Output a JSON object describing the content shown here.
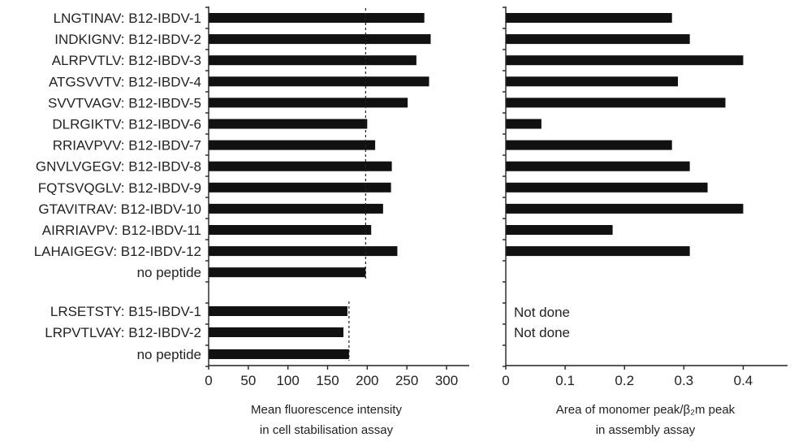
{
  "chart_data": [
    {
      "type": "bar",
      "orientation": "horizontal",
      "categories": [
        "LNGTINAV: B12-IBDV-1",
        "INDKIGNV: B12-IBDV-2",
        "ALRPVTLV: B12-IBDV-3",
        "ATGSVVTV: B12-IBDV-4",
        "SVVTVAGV: B12-IBDV-5",
        "DLRGIKTV: B12-IBDV-6",
        "RRIAVPVV: B12-IBDV-7",
        "GNVLVGEGV: B12-IBDV-8",
        "FQTSVQGLV: B12-IBDV-9",
        "GTAVITRAV: B12-IBDV-10",
        "AIRRIAVPV: B12-IBDV-11",
        "LAHAIGEGV: B12-IBDV-12",
        "no peptide",
        "LRSETSTY: B15-IBDV-1",
        "LRPVTLVAY: B12-IBDV-2",
        "no peptide"
      ],
      "values": [
        272,
        280,
        262,
        278,
        251,
        200,
        210,
        231,
        230,
        220,
        205,
        238,
        198,
        175,
        170,
        177
      ],
      "reference_lines": [
        {
          "value": 198,
          "rows": [
            0,
            12
          ]
        },
        {
          "value": 177,
          "rows": [
            13,
            15
          ]
        }
      ],
      "xticks": [
        "0",
        "50",
        "100",
        "150",
        "200",
        "250",
        "300"
      ],
      "xlim": [
        0,
        320
      ],
      "xlabel_lines": [
        "Mean fluorescence intensity",
        "in cell stabilisation assay"
      ]
    },
    {
      "type": "bar",
      "orientation": "horizontal",
      "categories": [
        "LNGTINAV: B12-IBDV-1",
        "INDKIGNV: B12-IBDV-2",
        "ALRPVTLV: B12-IBDV-3",
        "ATGSVVTV: B12-IBDV-4",
        "SVVTVAGV: B12-IBDV-5",
        "DLRGIKTV: B12-IBDV-6",
        "RRIAVPVV: B12-IBDV-7",
        "GNVLVGEGV: B12-IBDV-8",
        "FQTSVQGLV: B12-IBDV-9",
        "GTAVITRAV: B12-IBDV-10",
        "AIRRIAVPV: B12-IBDV-11",
        "LAHAIGEGV: B12-IBDV-12",
        "no peptide",
        "LRSETSTY: B15-IBDV-1",
        "LRPVTLVAY: B12-IBDV-2",
        "no peptide"
      ],
      "values": [
        0.28,
        0.31,
        0.4,
        0.29,
        0.37,
        0.06,
        0.28,
        0.31,
        0.34,
        0.4,
        0.18,
        0.31,
        null,
        null,
        null,
        null
      ],
      "annotations": [
        "Not done",
        "Not done"
      ],
      "xticks": [
        "0",
        "0.1",
        "0.2",
        "0.3",
        "0.4"
      ],
      "xlim": [
        0,
        0.48
      ],
      "xlabel_lines": [
        "Area of monomer peak/β₂m peak",
        "in assembly assay"
      ]
    }
  ]
}
